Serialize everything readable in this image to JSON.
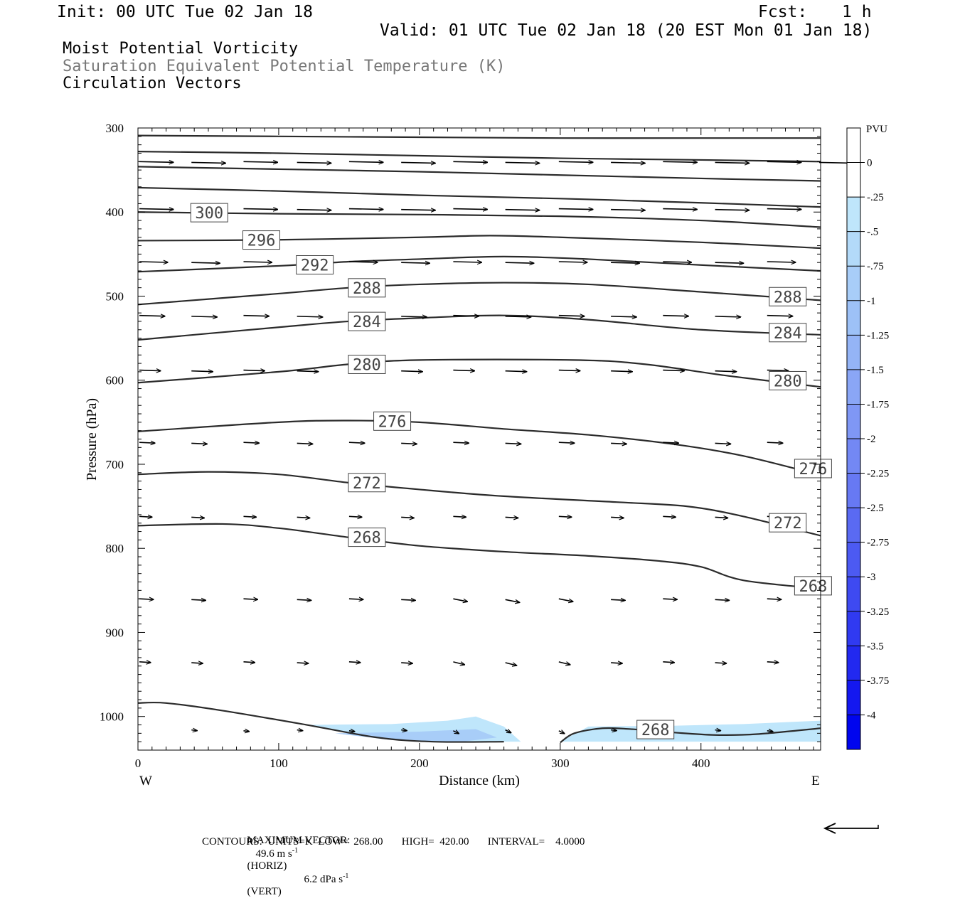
{
  "header": {
    "init": "Init: 00 UTC Tue 02 Jan 18",
    "fcst_label": "Fcst:",
    "fcst_value": "1 h",
    "valid": "Valid: 01 UTC Tue 02 Jan 18 (20 EST Mon 01 Jan 18)",
    "field1": "Moist Potential Vorticity",
    "field2": "Saturation Equivalent Potential Temperature (K)",
    "field3": "Circulation Vectors"
  },
  "chart_data": {
    "type": "line",
    "xlabel": "Distance (km)",
    "ylabel": "Pressure (hPa)",
    "xlim": [
      0,
      485
    ],
    "ylim": [
      1040,
      300
    ],
    "x_ticks": [
      0,
      100,
      200,
      300,
      400
    ],
    "y_ticks": [
      300,
      400,
      500,
      600,
      700,
      800,
      900,
      1000
    ],
    "x_end_labels": {
      "left": "W",
      "right": "E"
    },
    "colorbar": {
      "title": "PVU",
      "labels": [
        "0",
        "-.25",
        "-.5",
        "-.75",
        "-1",
        "-1.25",
        "-1.5",
        "-1.75",
        "-2",
        "-2.25",
        "-2.5",
        "-2.75",
        "-3",
        "-3.25",
        "-3.5",
        "-3.75",
        "-4"
      ],
      "colors": [
        "#ffffff",
        "#ffffff",
        "#bfe6fb",
        "#b3daf9",
        "#a8cdf8",
        "#9dc1f7",
        "#94b4f6",
        "#8aa6f6",
        "#7f97f5",
        "#7388f4",
        "#6779f3",
        "#5a6af2",
        "#4c5af2",
        "#3e4af1",
        "#303af1",
        "#2229f0",
        "#1418f0",
        "#0005ee"
      ]
    },
    "contours": [
      {
        "label": "",
        "points": [
          [
            0,
            309
          ],
          [
            100,
            310
          ],
          [
            200,
            311
          ],
          [
            300,
            312
          ],
          [
            400,
            312
          ],
          [
            485,
            312
          ]
        ]
      },
      {
        "label": "",
        "points": [
          [
            0,
            328
          ],
          [
            100,
            330
          ],
          [
            200,
            333
          ],
          [
            300,
            336
          ],
          [
            400,
            338
          ],
          [
            485,
            340
          ]
        ]
      },
      {
        "label": "",
        "points": [
          [
            0,
            346
          ],
          [
            100,
            349
          ],
          [
            200,
            352
          ],
          [
            300,
            356
          ],
          [
            400,
            360
          ],
          [
            485,
            363
          ]
        ]
      },
      {
        "label": "",
        "points": [
          [
            0,
            371
          ],
          [
            100,
            375
          ],
          [
            200,
            380
          ],
          [
            300,
            384
          ],
          [
            400,
            389
          ],
          [
            485,
            394
          ]
        ]
      },
      {
        "label": "300",
        "label_x": 37,
        "points": [
          [
            0,
            400
          ],
          [
            100,
            402
          ],
          [
            200,
            403
          ],
          [
            300,
            405
          ],
          [
            400,
            410
          ],
          [
            485,
            418
          ]
        ]
      },
      {
        "label": "296",
        "label_x": 74,
        "points": [
          [
            0,
            434
          ],
          [
            100,
            433
          ],
          [
            200,
            430
          ],
          [
            250,
            428
          ],
          [
            300,
            430
          ],
          [
            400,
            436
          ],
          [
            485,
            443
          ]
        ]
      },
      {
        "label": "292",
        "label_x": 112,
        "points": [
          [
            0,
            471
          ],
          [
            100,
            464
          ],
          [
            150,
            459
          ],
          [
            200,
            456
          ],
          [
            260,
            453
          ],
          [
            320,
            456
          ],
          [
            400,
            463
          ],
          [
            485,
            470
          ]
        ]
      },
      {
        "label": "288",
        "label_x": 149,
        "label2": "288",
        "label2_x": 448,
        "points": [
          [
            0,
            510
          ],
          [
            100,
            497
          ],
          [
            150,
            490
          ],
          [
            200,
            486
          ],
          [
            260,
            484
          ],
          [
            320,
            486
          ],
          [
            400,
            495
          ],
          [
            485,
            505
          ]
        ]
      },
      {
        "label": "284",
        "label_x": 149,
        "label2": "284",
        "label2_x": 448,
        "points": [
          [
            0,
            552
          ],
          [
            100,
            537
          ],
          [
            150,
            530
          ],
          [
            200,
            526
          ],
          [
            260,
            523
          ],
          [
            320,
            528
          ],
          [
            400,
            540
          ],
          [
            485,
            546
          ]
        ]
      },
      {
        "label": "280",
        "label_x": 149,
        "label2": "280",
        "label2_x": 448,
        "points": [
          [
            0,
            603
          ],
          [
            100,
            590
          ],
          [
            150,
            581
          ],
          [
            200,
            576
          ],
          [
            310,
            576
          ],
          [
            360,
            581
          ],
          [
            420,
            595
          ],
          [
            485,
            608
          ]
        ]
      },
      {
        "label": "276",
        "label_x": 167,
        "label2": "276",
        "label2_x": 466,
        "points": [
          [
            0,
            661
          ],
          [
            100,
            650
          ],
          [
            150,
            648
          ],
          [
            200,
            650
          ],
          [
            260,
            658
          ],
          [
            320,
            665
          ],
          [
            380,
            676
          ],
          [
            430,
            690
          ],
          [
            485,
            713
          ]
        ]
      },
      {
        "label": "272",
        "label_x": 149,
        "label2": "272",
        "label2_x": 448,
        "points": [
          [
            0,
            712
          ],
          [
            50,
            709
          ],
          [
            100,
            712
          ],
          [
            150,
            722
          ],
          [
            200,
            730
          ],
          [
            260,
            738
          ],
          [
            340,
            745
          ],
          [
            390,
            750
          ],
          [
            430,
            762
          ],
          [
            485,
            785
          ]
        ]
      },
      {
        "label": "268",
        "label_x": 149,
        "label2": "268",
        "label2_x": 466,
        "points": [
          [
            0,
            773
          ],
          [
            60,
            771
          ],
          [
            100,
            776
          ],
          [
            150,
            787
          ],
          [
            200,
            797
          ],
          [
            260,
            804
          ],
          [
            320,
            809
          ],
          [
            370,
            815
          ],
          [
            400,
            822
          ],
          [
            430,
            838
          ],
          [
            485,
            848
          ]
        ]
      },
      {
        "label": "",
        "points": [
          [
            0,
            984
          ],
          [
            20,
            984
          ],
          [
            60,
            993
          ],
          [
            120,
            1010
          ],
          [
            170,
            1025
          ],
          [
            210,
            1030
          ],
          [
            260,
            1030
          ]
        ]
      },
      {
        "label": "268",
        "label_x": 354,
        "points": [
          [
            300,
            1031
          ],
          [
            310,
            1020
          ],
          [
            330,
            1014
          ],
          [
            350,
            1015
          ],
          [
            380,
            1019
          ],
          [
            410,
            1022
          ],
          [
            440,
            1021
          ],
          [
            485,
            1014
          ]
        ]
      }
    ],
    "vector_rows": [
      {
        "pressure": 340,
        "xs": [
          0,
          37,
          74,
          112,
          149,
          186,
          223,
          260,
          298,
          335,
          372,
          409,
          446,
          483
        ],
        "len": 48
      },
      {
        "pressure": 396,
        "xs": [
          0,
          37,
          74,
          112,
          149,
          186,
          223,
          260,
          298,
          335,
          372,
          409,
          446
        ],
        "len": 48
      },
      {
        "pressure": 459,
        "xs": [
          0,
          37,
          74,
          112,
          149,
          186,
          223,
          260,
          298,
          335,
          372,
          409,
          446
        ],
        "len": 40
      },
      {
        "pressure": 523,
        "xs": [
          0,
          37,
          74,
          112,
          149,
          186,
          223,
          260,
          298,
          335,
          372,
          409,
          446
        ],
        "len": 36
      },
      {
        "pressure": 588,
        "xs": [
          0,
          37,
          74,
          112,
          149,
          186,
          223,
          260,
          298,
          335,
          372,
          409,
          446
        ],
        "len": 30
      },
      {
        "pressure": 674,
        "xs": [
          0,
          37,
          74,
          112,
          149,
          186,
          223,
          260,
          298,
          335,
          372,
          409,
          446
        ],
        "len": 22
      },
      {
        "pressure": 762,
        "xs": [
          0,
          37,
          74,
          112,
          149,
          186,
          223,
          260,
          298,
          335,
          372,
          409,
          446
        ],
        "len": 18
      },
      {
        "pressure": 860,
        "xs": [
          0,
          37,
          74,
          112,
          149,
          186,
          223,
          260,
          298,
          335,
          372,
          409,
          446
        ],
        "len": 20
      },
      {
        "pressure": 935,
        "xs": [
          0,
          37,
          74,
          112,
          149,
          186,
          223,
          260,
          298,
          335,
          372,
          409,
          446
        ],
        "len": 16
      },
      {
        "pressure": 1016,
        "xs": [
          37,
          74,
          112,
          149,
          186,
          223,
          260,
          298,
          335,
          372,
          409,
          446
        ],
        "len": 8
      }
    ],
    "shading": {
      "color": "#bfe6fb",
      "points": [
        [
          120,
          1010
        ],
        [
          180,
          1009
        ],
        [
          220,
          1005
        ],
        [
          240,
          1000
        ],
        [
          260,
          1012
        ],
        [
          272,
          1030
        ],
        [
          210,
          1030
        ],
        [
          170,
          1025
        ]
      ]
    },
    "shading2": {
      "color": "#bfe6fb",
      "points": [
        [
          300,
          1030
        ],
        [
          320,
          1012
        ],
        [
          380,
          1011
        ],
        [
          430,
          1009
        ],
        [
          485,
          1005
        ],
        [
          485,
          1030
        ]
      ]
    }
  },
  "footer": {
    "max_vector_label": "MAXIMUM VECTOR:",
    "horiz_value": "49.6 m s",
    "horiz_unit": "(HORIZ)",
    "vert_value": "6.2 dPa s",
    "vert_unit": "(VERT)",
    "exp": "-1",
    "contours": "CONTOURS:  UNITS=K  LOW=  268.00       HIGH=  420.00       INTERVAL=    4.0000"
  }
}
